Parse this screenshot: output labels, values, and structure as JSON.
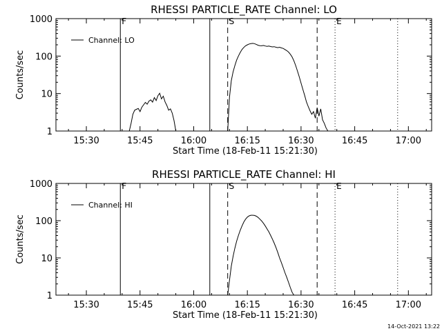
{
  "colors": {
    "background": "#ffffff",
    "foreground": "#000000"
  },
  "footer": {
    "timestamp": "14-Oct-2021 13:22"
  },
  "chart_data": [
    {
      "type": "line",
      "title": "RHESSI PARTICLE_RATE Channel: LO",
      "xlabel": "Start Time (18-Feb-11 15:21:30)",
      "ylabel": "Counts/sec",
      "y_scale": "log",
      "ylim": [
        1,
        1000
      ],
      "y_ticks": [
        1,
        10,
        100,
        1000
      ],
      "y_tick_labels": [
        "1",
        "10",
        "100",
        "1000"
      ],
      "xlim": [
        "15:21:30",
        "17:06:30"
      ],
      "x_ticks": [
        "15:30",
        "15:45",
        "16:00",
        "16:15",
        "16:30",
        "16:45",
        "17:00"
      ],
      "x_tick_labels": [
        "15:30",
        "15:45",
        "16:00",
        "16:15",
        "16:30",
        "16:45",
        "17:00"
      ],
      "legend": {
        "label": "Channel: LO",
        "placement": "top-left"
      },
      "markers": [
        {
          "time": "15:39:30",
          "label": "F",
          "style": "solid"
        },
        {
          "time": "16:04:30",
          "label": "",
          "style": "solid"
        },
        {
          "time": "16:09:30",
          "label": "S",
          "style": "dashed"
        },
        {
          "time": "16:34:30",
          "label": "",
          "style": "dashed"
        },
        {
          "time": "16:39:30",
          "label": "E",
          "style": "dotted"
        },
        {
          "time": "16:57:00",
          "label": "",
          "style": "dotted"
        }
      ],
      "series": [
        {
          "name": "Channel: LO",
          "segments": [
            [
              [
                "15:42:00",
                1
              ],
              [
                "15:42:30",
                1.6
              ],
              [
                "15:43:00",
                2.8
              ],
              [
                "15:43:30",
                3.6
              ],
              [
                "15:44:00",
                3.8
              ],
              [
                "15:44:30",
                4.0
              ],
              [
                "15:45:00",
                3.3
              ],
              [
                "15:45:30",
                4.3
              ],
              [
                "15:46:00",
                5.0
              ],
              [
                "15:46:30",
                5.8
              ],
              [
                "15:47:00",
                5.2
              ],
              [
                "15:47:30",
                6.3
              ],
              [
                "15:48:00",
                6.8
              ],
              [
                "15:48:30",
                5.9
              ],
              [
                "15:49:00",
                7.8
              ],
              [
                "15:49:30",
                6.5
              ],
              [
                "15:50:00",
                8.8
              ],
              [
                "15:50:30",
                10.2
              ],
              [
                "15:51:00",
                7.2
              ],
              [
                "15:51:30",
                8.5
              ],
              [
                "15:52:00",
                6.0
              ],
              [
                "15:52:30",
                4.8
              ],
              [
                "15:53:00",
                3.6
              ],
              [
                "15:53:30",
                3.9
              ],
              [
                "15:54:00",
                3.0
              ],
              [
                "15:54:30",
                1.9
              ],
              [
                "15:55:00",
                1
              ]
            ],
            [
              [
                "16:09:30",
                1
              ],
              [
                "16:10:00",
                8
              ],
              [
                "16:10:30",
                22
              ],
              [
                "16:11:00",
                38
              ],
              [
                "16:11:30",
                55
              ],
              [
                "16:12:00",
                78
              ],
              [
                "16:12:30",
                100
              ],
              [
                "16:13:00",
                125
              ],
              [
                "16:13:30",
                150
              ],
              [
                "16:14:00",
                170
              ],
              [
                "16:14:30",
                188
              ],
              [
                "16:15:00",
                200
              ],
              [
                "16:15:30",
                210
              ],
              [
                "16:16:00",
                215
              ],
              [
                "16:16:30",
                218
              ],
              [
                "16:17:00",
                215
              ],
              [
                "16:17:30",
                205
              ],
              [
                "16:18:00",
                195
              ],
              [
                "16:18:30",
                190
              ],
              [
                "16:19:00",
                188
              ],
              [
                "16:19:30",
                192
              ],
              [
                "16:20:00",
                186
              ],
              [
                "16:20:30",
                182
              ],
              [
                "16:21:00",
                185
              ],
              [
                "16:21:30",
                180
              ],
              [
                "16:22:00",
                176
              ],
              [
                "16:22:30",
                178
              ],
              [
                "16:23:00",
                172
              ],
              [
                "16:23:30",
                168
              ],
              [
                "16:24:00",
                172
              ],
              [
                "16:24:30",
                165
              ],
              [
                "16:25:00",
                160
              ],
              [
                "16:25:30",
                150
              ],
              [
                "16:26:00",
                140
              ],
              [
                "16:26:30",
                128
              ],
              [
                "16:27:00",
                112
              ],
              [
                "16:27:30",
                95
              ],
              [
                "16:28:00",
                75
              ],
              [
                "16:28:30",
                56
              ],
              [
                "16:29:00",
                40
              ],
              [
                "16:29:30",
                28
              ],
              [
                "16:30:00",
                19
              ],
              [
                "16:30:30",
                13
              ],
              [
                "16:31:00",
                9
              ],
              [
                "16:31:30",
                6
              ],
              [
                "16:32:00",
                4.5
              ],
              [
                "16:32:30",
                3.5
              ],
              [
                "16:33:00",
                2.8
              ],
              [
                "16:33:30",
                3.3
              ],
              [
                "16:34:00",
                2.2
              ],
              [
                "16:34:30",
                4.2
              ],
              [
                "16:35:00",
                2.5
              ],
              [
                "16:35:30",
                3.9
              ],
              [
                "16:36:00",
                2.0
              ],
              [
                "16:36:30",
                1.6
              ],
              [
                "16:37:00",
                1.2
              ],
              [
                "16:37:30",
                1
              ]
            ]
          ]
        }
      ]
    },
    {
      "type": "line",
      "title": "RHESSI PARTICLE_RATE Channel: HI",
      "xlabel": "Start Time (18-Feb-11 15:21:30)",
      "ylabel": "Counts/sec",
      "y_scale": "log",
      "ylim": [
        1,
        1000
      ],
      "y_ticks": [
        1,
        10,
        100,
        1000
      ],
      "y_tick_labels": [
        "1",
        "10",
        "100",
        "1000"
      ],
      "xlim": [
        "15:21:30",
        "17:06:30"
      ],
      "x_ticks": [
        "15:30",
        "15:45",
        "16:00",
        "16:15",
        "16:30",
        "16:45",
        "17:00"
      ],
      "x_tick_labels": [
        "15:30",
        "15:45",
        "16:00",
        "16:15",
        "16:30",
        "16:45",
        "17:00"
      ],
      "legend": {
        "label": "Channel: HI",
        "placement": "top-left"
      },
      "markers": [
        {
          "time": "15:39:30",
          "label": "F",
          "style": "solid"
        },
        {
          "time": "16:04:30",
          "label": "",
          "style": "solid"
        },
        {
          "time": "16:09:30",
          "label": "S",
          "style": "dashed"
        },
        {
          "time": "16:34:30",
          "label": "",
          "style": "dashed"
        },
        {
          "time": "16:39:30",
          "label": "E",
          "style": "dotted"
        },
        {
          "time": "16:57:00",
          "label": "",
          "style": "dotted"
        }
      ],
      "series": [
        {
          "name": "Channel: HI",
          "segments": [
            [
              [
                "16:09:30",
                1
              ],
              [
                "16:10:00",
                2.5
              ],
              [
                "16:10:30",
                6
              ],
              [
                "16:11:00",
                11
              ],
              [
                "16:11:30",
                18
              ],
              [
                "16:12:00",
                28
              ],
              [
                "16:12:30",
                40
              ],
              [
                "16:13:00",
                55
              ],
              [
                "16:13:30",
                72
              ],
              [
                "16:14:00",
                92
              ],
              [
                "16:14:30",
                110
              ],
              [
                "16:15:00",
                125
              ],
              [
                "16:15:30",
                135
              ],
              [
                "16:16:00",
                140
              ],
              [
                "16:16:30",
                140
              ],
              [
                "16:17:00",
                138
              ],
              [
                "16:17:30",
                132
              ],
              [
                "16:18:00",
                122
              ],
              [
                "16:18:30",
                110
              ],
              [
                "16:19:00",
                98
              ],
              [
                "16:19:30",
                85
              ],
              [
                "16:20:00",
                72
              ],
              [
                "16:20:30",
                60
              ],
              [
                "16:21:00",
                50
              ],
              [
                "16:21:30",
                40
              ],
              [
                "16:22:00",
                32
              ],
              [
                "16:22:30",
                25
              ],
              [
                "16:23:00",
                19
              ],
              [
                "16:23:30",
                14
              ],
              [
                "16:24:00",
                10
              ],
              [
                "16:24:30",
                7.5
              ],
              [
                "16:25:00",
                5.5
              ],
              [
                "16:25:30",
                4
              ],
              [
                "16:26:00",
                3
              ],
              [
                "16:26:30",
                2.2
              ],
              [
                "16:27:00",
                1.6
              ],
              [
                "16:27:30",
                1.2
              ],
              [
                "16:28:00",
                1
              ]
            ]
          ]
        }
      ]
    }
  ]
}
